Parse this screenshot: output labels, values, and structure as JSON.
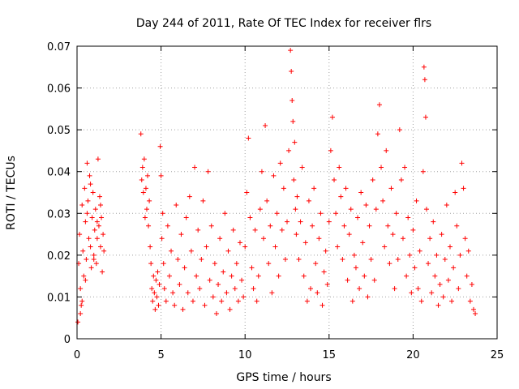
{
  "chart_data": {
    "type": "scatter",
    "title": "Day 244 of 2011, Rate Of TEC Index for receiver flrs",
    "xlabel": "GPS time / hours",
    "ylabel": "ROTI / TECUs",
    "xlim": [
      0,
      25
    ],
    "ylim": [
      0,
      0.07
    ],
    "xticks": [
      0,
      5,
      10,
      15,
      20,
      25
    ],
    "xtick_labels": [
      "0",
      "5",
      "10",
      "15",
      "20",
      "25"
    ],
    "yticks": [
      0,
      0.01,
      0.02,
      0.03,
      0.04,
      0.05,
      0.06,
      0.07
    ],
    "ytick_labels": [
      "0",
      "0.01",
      "0.02",
      "0.03",
      "0.04",
      "0.05",
      "0.06",
      "0.07"
    ],
    "grid": true,
    "legend": "none",
    "marker": "+",
    "color": "#ff0000",
    "series": [
      {
        "x": [
          0.05,
          0.1,
          0.15,
          0.2,
          0.25,
          0.3,
          0.35,
          0.4,
          0.45,
          0.5,
          0.55,
          0.6,
          0.65,
          0.7,
          0.75,
          0.8,
          0.85,
          0.9,
          0.95,
          1.0,
          1.05,
          1.1,
          1.15,
          1.2,
          1.25,
          1.3,
          1.35,
          1.4,
          1.45,
          1.5,
          1.55,
          1.6,
          0.2,
          0.3,
          0.5,
          0.6,
          0.8,
          1.0,
          1.2,
          1.4,
          3.8,
          3.85,
          3.9,
          3.95,
          4.0,
          4.05,
          4.1,
          4.15,
          4.2,
          4.25,
          4.3,
          4.35,
          4.4,
          4.45,
          4.5,
          4.55,
          4.6,
          4.65,
          4.7,
          4.75,
          4.8,
          4.85,
          4.9,
          4.95,
          5.0,
          5.05,
          5.1,
          5.15,
          5.2,
          5.3,
          5.4,
          5.5,
          5.6,
          5.7,
          5.8,
          5.9,
          6.0,
          6.1,
          6.2,
          6.3,
          6.4,
          6.5,
          6.6,
          6.7,
          6.8,
          6.9,
          7.0,
          7.1,
          7.2,
          7.3,
          7.4,
          7.5,
          7.6,
          7.7,
          7.8,
          7.9,
          8.0,
          8.1,
          8.2,
          8.3,
          8.4,
          8.5,
          8.6,
          8.7,
          8.8,
          8.9,
          9.0,
          9.1,
          9.2,
          9.3,
          9.4,
          9.5,
          9.6,
          9.7,
          9.8,
          9.9,
          10.0,
          10.1,
          10.2,
          10.3,
          10.4,
          10.5,
          10.6,
          10.7,
          10.8,
          10.9,
          11.0,
          11.1,
          11.2,
          11.3,
          11.4,
          11.5,
          11.6,
          11.7,
          11.8,
          11.9,
          12.0,
          12.1,
          12.2,
          12.3,
          12.4,
          12.5,
          12.6,
          12.7,
          12.75,
          12.8,
          12.85,
          12.9,
          12.95,
          13.0,
          13.05,
          13.1,
          13.2,
          13.3,
          13.4,
          13.5,
          13.6,
          13.7,
          13.8,
          13.9,
          14.0,
          14.1,
          14.2,
          14.3,
          14.4,
          14.5,
          14.6,
          14.7,
          14.8,
          14.9,
          15.0,
          15.1,
          15.2,
          15.3,
          15.4,
          15.5,
          15.6,
          15.7,
          15.8,
          15.9,
          16.0,
          16.1,
          16.2,
          16.3,
          16.4,
          16.5,
          16.6,
          16.7,
          16.8,
          16.9,
          17.0,
          17.1,
          17.2,
          17.3,
          17.4,
          17.5,
          17.6,
          17.7,
          17.8,
          17.9,
          18.0,
          18.1,
          18.2,
          18.3,
          18.4,
          18.5,
          18.6,
          18.7,
          18.8,
          18.9,
          19.0,
          19.1,
          19.2,
          19.3,
          19.4,
          19.5,
          19.6,
          19.7,
          19.8,
          19.9,
          20.0,
          20.1,
          20.2,
          20.3,
          20.4,
          20.5,
          20.6,
          20.65,
          20.7,
          20.75,
          20.8,
          20.9,
          21.0,
          21.1,
          21.2,
          21.3,
          21.4,
          21.5,
          21.6,
          21.7,
          21.8,
          21.9,
          22.0,
          22.1,
          22.2,
          22.3,
          22.4,
          22.5,
          22.6,
          22.7,
          22.8,
          22.9,
          23.0,
          23.1,
          23.2,
          23.3,
          23.4,
          23.5,
          23.6,
          23.7
        ],
        "y": [
          0.004,
          0.018,
          0.025,
          0.012,
          0.008,
          0.032,
          0.021,
          0.015,
          0.036,
          0.028,
          0.019,
          0.042,
          0.033,
          0.024,
          0.039,
          0.022,
          0.017,
          0.029,
          0.035,
          0.02,
          0.026,
          0.031,
          0.018,
          0.024,
          0.043,
          0.027,
          0.034,
          0.022,
          0.029,
          0.016,
          0.025,
          0.021,
          0.006,
          0.009,
          0.014,
          0.03,
          0.037,
          0.019,
          0.028,
          0.032,
          0.049,
          0.038,
          0.041,
          0.035,
          0.043,
          0.029,
          0.036,
          0.031,
          0.039,
          0.027,
          0.033,
          0.022,
          0.018,
          0.012,
          0.009,
          0.015,
          0.011,
          0.007,
          0.014,
          0.01,
          0.016,
          0.008,
          0.013,
          0.046,
          0.039,
          0.024,
          0.03,
          0.018,
          0.012,
          0.009,
          0.027,
          0.015,
          0.021,
          0.011,
          0.008,
          0.032,
          0.019,
          0.013,
          0.025,
          0.007,
          0.017,
          0.029,
          0.011,
          0.034,
          0.021,
          0.009,
          0.041,
          0.015,
          0.026,
          0.012,
          0.019,
          0.033,
          0.008,
          0.022,
          0.04,
          0.014,
          0.027,
          0.01,
          0.018,
          0.006,
          0.013,
          0.024,
          0.009,
          0.016,
          0.03,
          0.011,
          0.021,
          0.007,
          0.015,
          0.026,
          0.012,
          0.018,
          0.009,
          0.023,
          0.014,
          0.01,
          0.022,
          0.035,
          0.048,
          0.029,
          0.017,
          0.012,
          0.026,
          0.009,
          0.015,
          0.031,
          0.04,
          0.024,
          0.051,
          0.033,
          0.018,
          0.027,
          0.011,
          0.039,
          0.022,
          0.03,
          0.015,
          0.042,
          0.026,
          0.036,
          0.019,
          0.028,
          0.045,
          0.069,
          0.064,
          0.057,
          0.052,
          0.038,
          0.047,
          0.031,
          0.025,
          0.034,
          0.019,
          0.028,
          0.041,
          0.015,
          0.023,
          0.009,
          0.033,
          0.012,
          0.027,
          0.036,
          0.018,
          0.011,
          0.024,
          0.03,
          0.008,
          0.016,
          0.021,
          0.013,
          0.028,
          0.045,
          0.053,
          0.038,
          0.03,
          0.022,
          0.041,
          0.034,
          0.019,
          0.027,
          0.036,
          0.014,
          0.025,
          0.031,
          0.009,
          0.02,
          0.017,
          0.029,
          0.012,
          0.035,
          0.023,
          0.015,
          0.032,
          0.01,
          0.027,
          0.019,
          0.038,
          0.014,
          0.031,
          0.049,
          0.056,
          0.041,
          0.033,
          0.022,
          0.045,
          0.027,
          0.018,
          0.036,
          0.025,
          0.012,
          0.03,
          0.019,
          0.05,
          0.038,
          0.024,
          0.041,
          0.015,
          0.029,
          0.02,
          0.011,
          0.026,
          0.017,
          0.033,
          0.012,
          0.021,
          0.009,
          0.04,
          0.065,
          0.062,
          0.053,
          0.031,
          0.018,
          0.024,
          0.011,
          0.028,
          0.015,
          0.02,
          0.008,
          0.013,
          0.025,
          0.01,
          0.019,
          0.032,
          0.014,
          0.022,
          0.009,
          0.017,
          0.035,
          0.027,
          0.012,
          0.02,
          0.042,
          0.036,
          0.024,
          0.015,
          0.021,
          0.009,
          0.013,
          0.007,
          0.006
        ]
      }
    ]
  }
}
